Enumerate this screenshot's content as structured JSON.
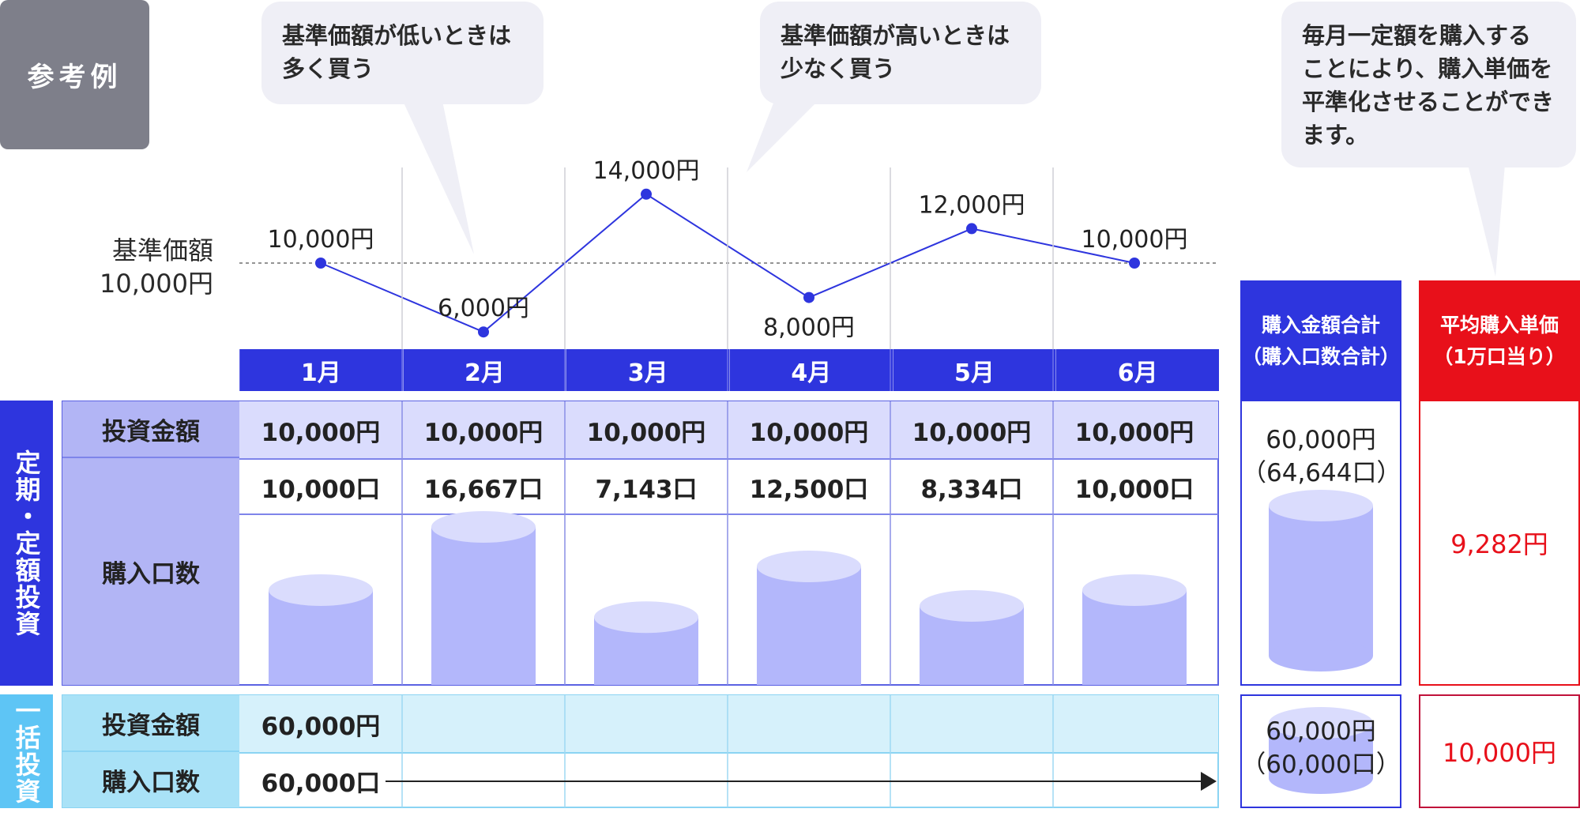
{
  "badge": "参考例",
  "bubbles": {
    "low": [
      "基準価額が低いときは",
      "多く買う"
    ],
    "high": [
      "基準価額が高いときは",
      "少なく買う"
    ],
    "summary": [
      "毎月一定額を購入する",
      "ことにより、購入単価を",
      "平準化させることができ",
      "ます。"
    ]
  },
  "base_label": [
    "基準価額",
    "10,000円"
  ],
  "months": [
    "1月",
    "2月",
    "3月",
    "4月",
    "5月",
    "6月"
  ],
  "chart_data": {
    "type": "line",
    "categories": [
      "1月",
      "2月",
      "3月",
      "4月",
      "5月",
      "6月"
    ],
    "series": [
      {
        "values": [
          10000,
          6000,
          14000,
          8000,
          12000,
          10000
        ],
        "labels": [
          "10,000円",
          "6,000円",
          "14,000円",
          "8,000円",
          "12,000円",
          "10,000円"
        ]
      }
    ],
    "reference_line": 10000,
    "units_purchased": [
      10000,
      16667,
      7143,
      12500,
      8334,
      10000
    ],
    "colors": {
      "line": "#2e35de",
      "reference": "#555555",
      "cylinder_body": "#b3b7fb",
      "cylinder_top": "#dadcfd"
    }
  },
  "regular": {
    "side": "定期・定額投資",
    "invest_label": "投資金額",
    "units_label": "購入口数",
    "amounts": [
      "10,000円",
      "10,000円",
      "10,000円",
      "10,000円",
      "10,000円",
      "10,000円"
    ],
    "units": [
      "10,000口",
      "16,667口",
      "7,143口",
      "12,500口",
      "8,334口",
      "10,000口"
    ]
  },
  "lump": {
    "side": "一括投資",
    "invest_label": "投資金額",
    "units_label": "購入口数",
    "amount": "60,000円",
    "units": "60,000口"
  },
  "summary": {
    "total_head": [
      "購入金額合計",
      "（購入口数合計）"
    ],
    "avg_head": [
      "平均購入単価",
      "（1万口当り）"
    ],
    "regular_total": [
      "60,000円",
      "（64,644口）"
    ],
    "regular_avg": "9,282円",
    "lump_total": [
      "60,000円",
      "（60,000口）"
    ],
    "lump_avg": "10,000円"
  },
  "colors": {
    "accent": "#2e35de",
    "accent_light": "#5ec5f5",
    "red": "#e8101a",
    "dark_red": "#c0123a",
    "bubble": "#efeff6",
    "badge": "#7e7f8a"
  }
}
